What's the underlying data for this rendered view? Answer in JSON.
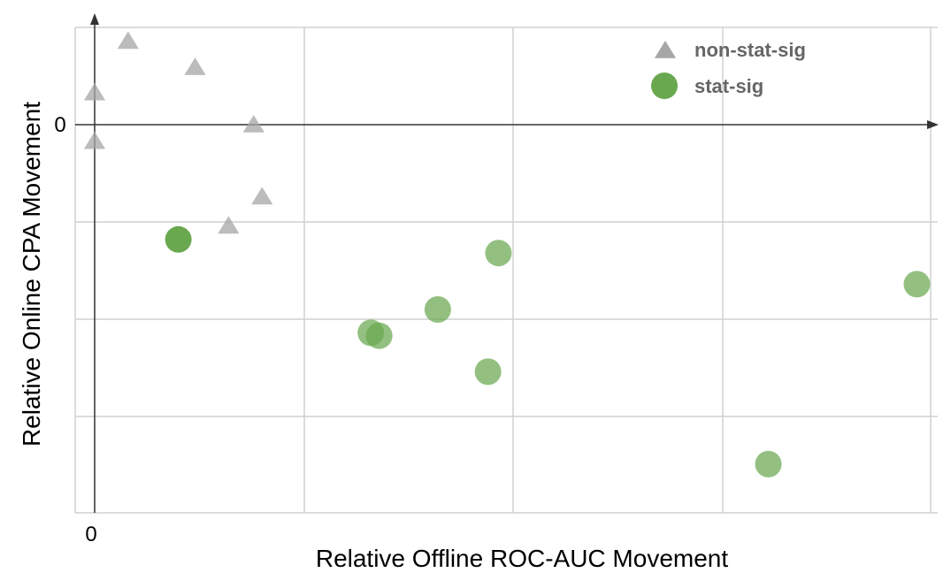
{
  "chart_data": {
    "type": "scatter",
    "xlabel": "Relative Offline ROC-AUC Movement",
    "ylabel": "Relative Online CPA Movement",
    "xlim": [
      0,
      4
    ],
    "ylim": [
      -4,
      1
    ],
    "x_tick_labels": [
      "0"
    ],
    "y_tick_labels": [
      "0"
    ],
    "grid": true,
    "legend_position": "top-right",
    "series": [
      {
        "name": "non-stat-sig",
        "marker": "triangle",
        "color": "#a6a6a6",
        "points": [
          {
            "x": 0.16,
            "y": 0.86
          },
          {
            "x": 0.0,
            "y": 0.33
          },
          {
            "x": 0.48,
            "y": 0.59
          },
          {
            "x": 0.0,
            "y": -0.17
          },
          {
            "x": 0.76,
            "y": 0.0
          },
          {
            "x": 0.8,
            "y": -0.74
          },
          {
            "x": 0.64,
            "y": -1.04
          }
        ]
      },
      {
        "name": "stat-sig",
        "marker": "circle",
        "color": "#6aa84f",
        "points": [
          {
            "x": 0.4,
            "y": -1.18
          },
          {
            "x": 1.93,
            "y": -1.32
          },
          {
            "x": 1.64,
            "y": -1.9
          },
          {
            "x": 1.32,
            "y": -2.14
          },
          {
            "x": 1.36,
            "y": -2.17
          },
          {
            "x": 1.88,
            "y": -2.54
          },
          {
            "x": 3.22,
            "y": -3.49
          },
          {
            "x": 3.93,
            "y": -1.64
          }
        ]
      }
    ]
  }
}
